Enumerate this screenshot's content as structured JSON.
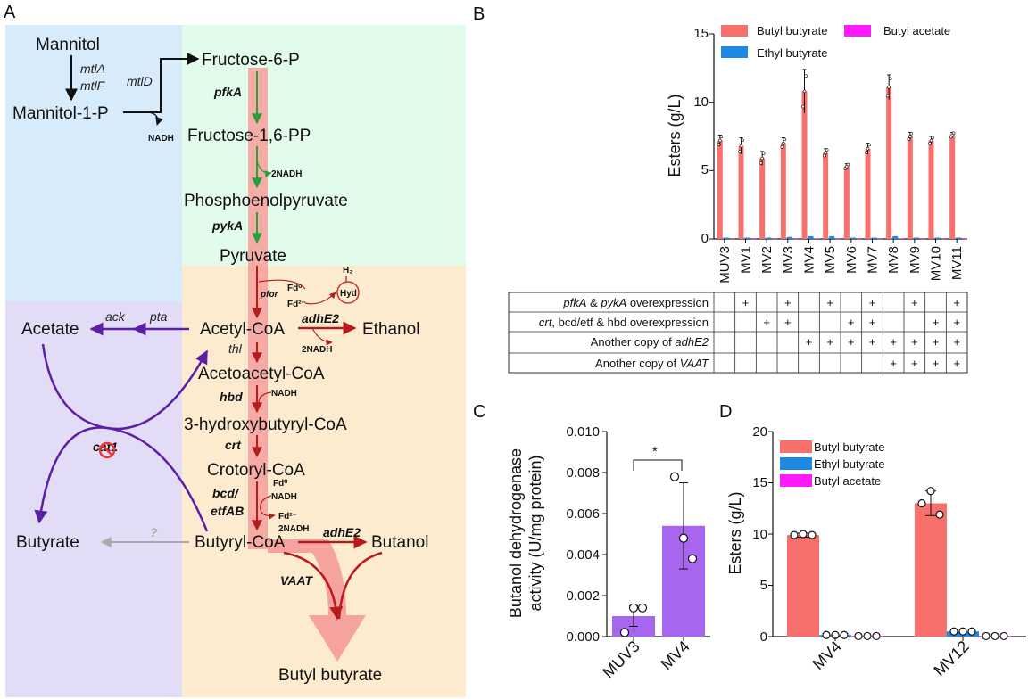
{
  "panels": {
    "a": "A",
    "b": "B",
    "c": "C",
    "d": "D"
  },
  "pathway": {
    "metabolites": {
      "mannitol": "Mannitol",
      "mannitol1p": "Mannitol-1-P",
      "f6p": "Fructose-6-P",
      "f16pp": "Fructose-1,6-PP",
      "pep": "Phosphoenolpyruvate",
      "pyruvate": "Pyruvate",
      "acetylcoa": "Acetyl-CoA",
      "acetoacetylcoa": "Acetoacetyl-CoA",
      "hbcoa": "3-hydroxybutyryl-CoA",
      "crotonylcoa": "Crotoryl-CoA",
      "butyrylcoa": "Butyryl-CoA",
      "acetate": "Acetate",
      "ethanol": "Ethanol",
      "butyrate": "Butyrate",
      "butanol": "Butanol",
      "butylbutyrate": "Butyl butyrate"
    },
    "enzymes": {
      "mtla": "mtlA",
      "mtlf": "mtlF",
      "mtld": "mtlD",
      "pfka": "pfkA",
      "pyka": "pykA",
      "pfor": "pfor",
      "hyd": "Hyd",
      "adhe2_top": "adhE2",
      "adhe2_bottom": "adhE2",
      "ack": "ack",
      "pta": "pta",
      "thl": "thl",
      "hbd": "hbd",
      "crt": "crt",
      "bcd": "bcd/",
      "etfab": "etfAB",
      "cat1": "cat1",
      "vaat": "VAAT",
      "unknown": "?"
    },
    "cofactors": {
      "nadh1": "NADH",
      "nadh2": "2NADH",
      "h2": "H₂",
      "fd0": "Fd⁰",
      "fd2": "Fd²⁻",
      "nadh_eth": "2NADH",
      "nadh_hbd": "NADH",
      "fd0b": "Fd⁰",
      "nadh_bcd": "NADH",
      "fd2b": "Fd²⁻",
      "nadh_buoh": "2NADH"
    }
  },
  "colors": {
    "blue_bg": "#d8ebfb",
    "green_bg": "#e2fbea",
    "orange_bg": "#fdebd0",
    "purple_bg": "#e3dcf7",
    "butyl_butyrate": "#f8706c",
    "ethyl_butyrate": "#1e88e5",
    "butyl_acetate": "#ff1aff",
    "activity_bar": "#a865f0",
    "red_path": "#b71c1c",
    "green_path": "#2e9d3a",
    "purple_path": "#5b1fa6"
  },
  "chart_b": {
    "ylabel": "Esters (g/L)",
    "yticks": [
      "0",
      "5",
      "10",
      "15"
    ],
    "legend": [
      "Butyl butyrate",
      "Butyl acetate",
      "Ethyl butyrate"
    ],
    "table": {
      "rows": [
        {
          "label_parts": [
            "pfkA",
            " & ",
            "pykA",
            " overexpression"
          ],
          "marks": [
            false,
            true,
            false,
            true,
            false,
            true,
            false,
            true,
            false,
            true,
            false,
            true
          ]
        },
        {
          "label_parts": [
            "crt",
            ", bcd/etf & hbd",
            "",
            " overexpression"
          ],
          "marks": [
            false,
            false,
            true,
            true,
            false,
            false,
            true,
            true,
            false,
            false,
            true,
            true
          ]
        },
        {
          "label_parts": [
            "Another copy of ",
            "adhE2",
            "",
            ""
          ],
          "marks": [
            false,
            false,
            false,
            false,
            true,
            true,
            true,
            true,
            true,
            true,
            true,
            true
          ]
        },
        {
          "label_parts": [
            "Another copy of ",
            "VAAT",
            "",
            ""
          ],
          "marks": [
            false,
            false,
            false,
            false,
            false,
            false,
            false,
            false,
            true,
            true,
            true,
            true
          ]
        }
      ],
      "mark": "+"
    }
  },
  "chart_c": {
    "ylabel_line1": "Butanol dehydrogenase",
    "ylabel_line2": "activity (U/mg protein)",
    "yticks": [
      "0.000",
      "0.002",
      "0.004",
      "0.006",
      "0.008",
      "0.010"
    ],
    "significance": "*"
  },
  "chart_d": {
    "ylabel": "Esters (g/L)",
    "yticks": [
      "0",
      "5",
      "10",
      "15",
      "20"
    ],
    "legend": [
      "Butyl butyrate",
      "Ethyl butyrate",
      "Butyl acetate"
    ]
  },
  "chart_data": [
    {
      "type": "bar",
      "categories": [
        "MUV3",
        "MV1",
        "MV2",
        "MV3",
        "MV4",
        "MV5",
        "MV6",
        "MV7",
        "MV8",
        "MV9",
        "MV10",
        "MV11"
      ],
      "ylim": [
        0,
        15
      ],
      "ylabel": "Esters (g/L)",
      "series": [
        {
          "name": "Butyl butyrate",
          "values": [
            7.2,
            6.8,
            5.9,
            7.0,
            10.8,
            6.3,
            5.3,
            6.6,
            11.1,
            7.5,
            7.2,
            7.6
          ],
          "err": [
            0.4,
            0.6,
            0.5,
            0.4,
            1.6,
            0.3,
            0.2,
            0.4,
            0.9,
            0.3,
            0.3,
            0.2
          ]
        },
        {
          "name": "Ethyl butyrate",
          "values": [
            0.1,
            0.1,
            0.1,
            0.15,
            0.2,
            0.2,
            0.1,
            0.1,
            0.2,
            0.1,
            0.1,
            0.1
          ]
        },
        {
          "name": "Butyl acetate",
          "values": [
            0.02,
            0.02,
            0.02,
            0.02,
            0.03,
            0.02,
            0.02,
            0.02,
            0.03,
            0.02,
            0.02,
            0.02
          ]
        }
      ]
    },
    {
      "type": "bar",
      "categories": [
        "MUV3",
        "MV4"
      ],
      "values": [
        0.001,
        0.0054
      ],
      "err": [
        0.0005,
        0.0021
      ],
      "points": [
        [
          0.0002,
          0.0014,
          0.0014
        ],
        [
          0.0078,
          0.0048,
          0.0038
        ]
      ],
      "ylim": [
        0,
        0.01
      ],
      "ylabel": "Butanol dehydrogenase activity (U/mg protein)"
    },
    {
      "type": "bar",
      "categories": [
        "MV4",
        "MV12"
      ],
      "ylim": [
        0,
        20
      ],
      "ylabel": "Esters (g/L)",
      "series": [
        {
          "name": "Butyl butyrate",
          "values": [
            9.9,
            13.0
          ],
          "err": [
            0.2,
            1.2
          ],
          "points": [
            [
              9.9,
              10.0,
              9.9
            ],
            [
              13.0,
              14.2,
              11.9
            ]
          ]
        },
        {
          "name": "Ethyl butyrate",
          "values": [
            0.15,
            0.5
          ],
          "points": [
            [
              0.15,
              0.15,
              0.15
            ],
            [
              0.5,
              0.5,
              0.5
            ]
          ]
        },
        {
          "name": "Butyl acetate",
          "values": [
            0.05,
            0.05
          ],
          "points": [
            [
              0.05,
              0.05,
              0.05
            ],
            [
              0.05,
              0.05,
              0.05
            ]
          ]
        }
      ]
    }
  ]
}
